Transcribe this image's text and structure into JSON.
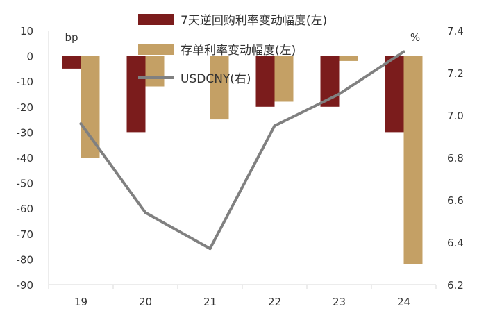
{
  "chart_data": {
    "type": "bar",
    "categories": [
      "19",
      "20",
      "21",
      "22",
      "23",
      "24"
    ],
    "left_axis": {
      "unit_label": "bp",
      "ylim": [
        -90,
        10
      ],
      "ticks": [
        "10",
        "0",
        "-10",
        "-20",
        "-30",
        "-40",
        "-50",
        "-60",
        "-70",
        "-80",
        "-90"
      ]
    },
    "right_axis": {
      "unit_label": "%",
      "ylim": [
        6.2,
        7.4
      ],
      "ticks": [
        "7.4",
        "7.2",
        "7.0",
        "6.8",
        "6.6",
        "6.4",
        "6.2"
      ]
    },
    "series": [
      {
        "name": "7天逆回购利率变动幅度(左)",
        "type": "bar",
        "axis": "left",
        "color": "#7B1C1C",
        "values": [
          -5,
          -30,
          0,
          -20,
          -20,
          -30
        ]
      },
      {
        "name": "存单利率变动幅度(左)",
        "type": "bar",
        "axis": "left",
        "color": "#C4A065",
        "values": [
          -40,
          -12,
          -25,
          -18,
          -2,
          -82
        ]
      },
      {
        "name": "USDCNY(右)",
        "type": "line",
        "axis": "right",
        "color": "#808080",
        "values": [
          6.96,
          6.54,
          6.37,
          6.95,
          7.1,
          7.3
        ]
      }
    ],
    "legend": {
      "placement": "top-center"
    },
    "grid": false
  }
}
